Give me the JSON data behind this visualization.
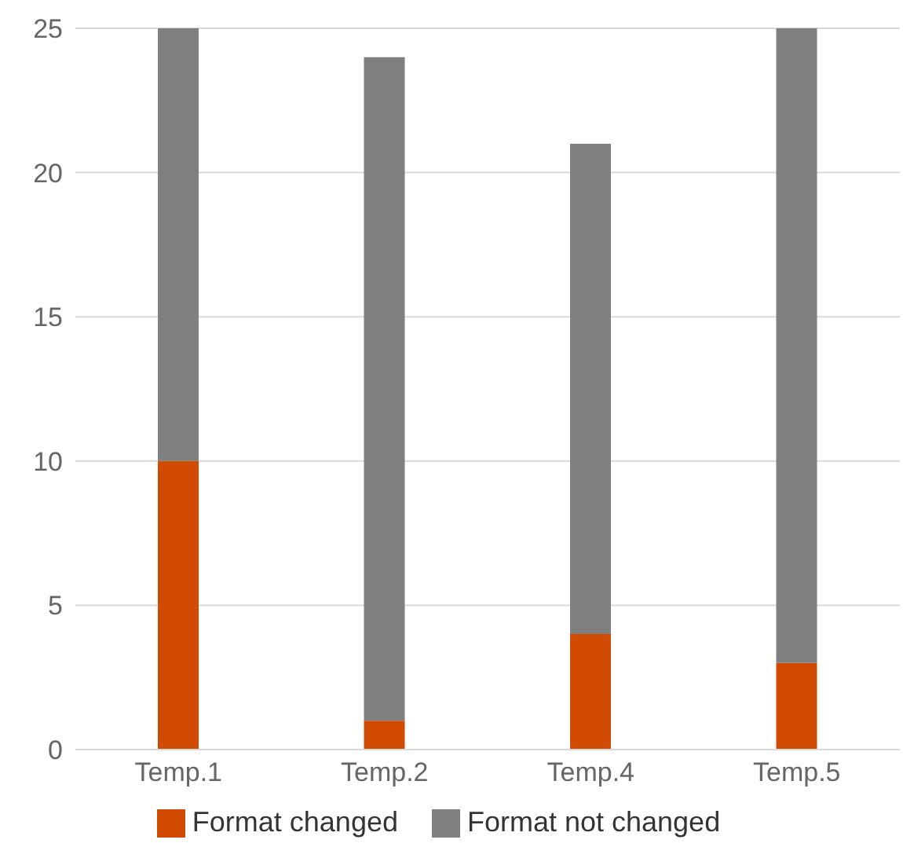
{
  "chart_data": {
    "type": "bar",
    "stacked": true,
    "categories": [
      "Temp.1",
      "Temp.2",
      "Temp.4",
      "Temp.5"
    ],
    "series": [
      {
        "name": "Format changed",
        "color": "#d04a02",
        "values": [
          10,
          1,
          4,
          3
        ]
      },
      {
        "name": "Format not changed",
        "color": "#7f7f7f",
        "values": [
          15,
          23,
          17,
          22
        ]
      }
    ],
    "ylim": [
      0,
      25
    ],
    "yticks": [
      0,
      5,
      10,
      15,
      20,
      25
    ],
    "grid": "y",
    "legend": "bottom"
  }
}
